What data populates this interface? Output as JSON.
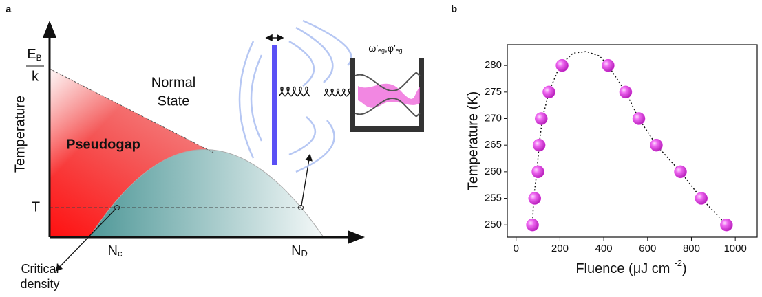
{
  "diagram": {
    "panel_label": "a",
    "y_axis_label": "Temperature",
    "energy_label": {
      "main": "E",
      "sub": "B",
      "denominator": "k"
    },
    "normal_state": [
      "Normal",
      "State"
    ],
    "pseudogap": "Pseudogap",
    "temperature_mark": "T",
    "n_c": {
      "main": "N",
      "sub": "c"
    },
    "n_d": {
      "main": "N",
      "sub": "D"
    },
    "critical_density": [
      "Critical",
      "density"
    ],
    "mode_labels": {
      "omega": "ω′",
      "omega_sub": "eg",
      "separator": ",",
      "phi": "φ′",
      "phi_sub": "eg"
    }
  },
  "chart_data": {
    "type": "scatter",
    "panel_label": "b",
    "ylabel": "Temperature (K)",
    "xlabel": "Fluence (μJ cm",
    "xlabel_sup": "-2",
    "xlabel_end": ")",
    "series": [
      {
        "color": "#e23ee6",
        "x": [
          75,
          85,
          100,
          105,
          115,
          150,
          210,
          420,
          500,
          560,
          640,
          750,
          845,
          960
        ],
        "values": [
          250,
          255,
          260,
          265,
          270,
          275,
          280,
          280,
          275,
          270,
          265,
          260,
          255,
          250
        ]
      },
      {
        "type": "line",
        "color": "#111111",
        "x": [
          75,
          80,
          95,
          105,
          120,
          150,
          200,
          260,
          320,
          380,
          420,
          500,
          560,
          640,
          750,
          845,
          960
        ],
        "values": [
          250,
          255,
          260,
          265,
          270,
          275,
          280,
          282.3,
          282.6,
          281.8,
          280,
          275,
          270,
          265,
          260,
          255,
          250
        ]
      }
    ],
    "xlim": [
      -40,
      1100
    ],
    "ylim": [
      247.7,
      283.9
    ],
    "xticks": [
      0,
      200,
      400,
      600,
      800,
      1000
    ],
    "yticks": [
      250,
      255,
      260,
      265,
      270,
      275,
      280
    ],
    "grid": false
  }
}
